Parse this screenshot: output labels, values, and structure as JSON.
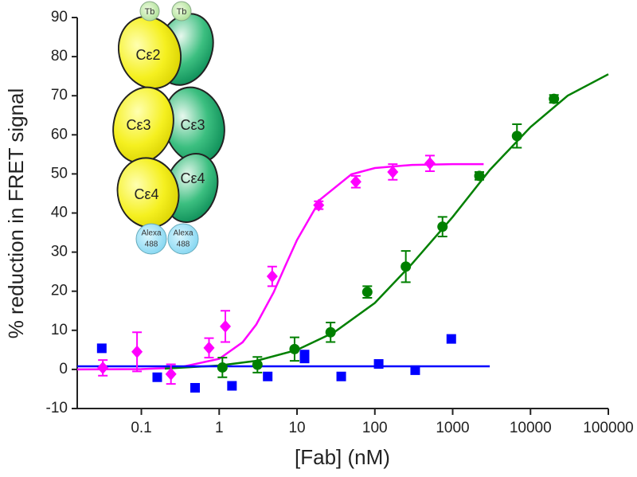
{
  "chart_data": {
    "type": "scatter",
    "xlabel": "[Fab] (nM)",
    "ylabel": "% reduction in FRET signal",
    "xscale": "log",
    "xlim": [
      0.015,
      100000
    ],
    "xticks": [
      0.1,
      1,
      10,
      100,
      1000,
      10000,
      100000
    ],
    "ylim": [
      -10,
      90
    ],
    "yticks": [
      -10,
      0,
      10,
      20,
      30,
      40,
      50,
      60,
      70,
      80,
      90
    ],
    "series": [
      {
        "color": "#ff00ff",
        "marker": "diamond",
        "x": [
          0.032,
          0.088,
          0.24,
          0.74,
          1.2,
          4.8,
          19,
          57,
          170,
          510
        ],
        "values": [
          0.4,
          4.5,
          -1.2,
          5.5,
          11,
          23.8,
          42,
          48,
          50.5,
          52.7
        ],
        "errors": [
          2,
          5,
          2.5,
          2.5,
          4,
          2.5,
          1,
          1.5,
          2,
          2
        ]
      },
      {
        "color": "#008000",
        "marker": "circle",
        "x": [
          1.1,
          3.1,
          9.3,
          27,
          80,
          250,
          740,
          2200,
          6700,
          20000
        ],
        "values": [
          0.5,
          1.2,
          5.2,
          9.5,
          19.8,
          26.3,
          36.5,
          49.5,
          59.7,
          69.2
        ],
        "errors": [
          2.5,
          2,
          3,
          2.5,
          1.5,
          4,
          2.5,
          1,
          3,
          1
        ]
      },
      {
        "color": "#0000ff",
        "marker": "square",
        "x": [
          0.031,
          0.16,
          0.49,
          1.46,
          4.2,
          12.5,
          12.5,
          37,
          112,
          330,
          960
        ],
        "values": [
          5.4,
          -2,
          -4.7,
          -4.2,
          -1.8,
          3.8,
          2.8,
          -1.8,
          1.4,
          -0.2,
          7.8
        ]
      }
    ],
    "fits": [
      {
        "color": "#ff00ff",
        "x": [
          0.015,
          0.1,
          0.3,
          1,
          2,
          3,
          5,
          7,
          10,
          20,
          50,
          100,
          300,
          1000,
          2500
        ],
        "values": [
          0,
          0.09,
          0.46,
          2.7,
          6.95,
          11.5,
          19.7,
          26.3,
          33.1,
          43.5,
          49.9,
          51.5,
          52.3,
          52.5,
          52.5
        ]
      },
      {
        "color": "#008000",
        "x": [
          0.2,
          1,
          3,
          10,
          30,
          100,
          300,
          1000,
          3000,
          10000,
          30000,
          100000
        ],
        "values": [
          0.2,
          1,
          2.2,
          5,
          9.5,
          17,
          27,
          39,
          51,
          62,
          70,
          75.5
        ]
      },
      {
        "color": "#0000ff",
        "x": [
          0.015,
          3000
        ],
        "values": [
          0.8,
          0.8
        ]
      }
    ],
    "inset": {
      "tb": [
        "Tb",
        "Tb"
      ],
      "domains": [
        "Cε2",
        "Cε3",
        "Cε3",
        "Cε4",
        "Cε4"
      ],
      "alexa": [
        [
          "Alexa",
          "488"
        ],
        [
          "Alexa",
          "488"
        ]
      ]
    }
  }
}
